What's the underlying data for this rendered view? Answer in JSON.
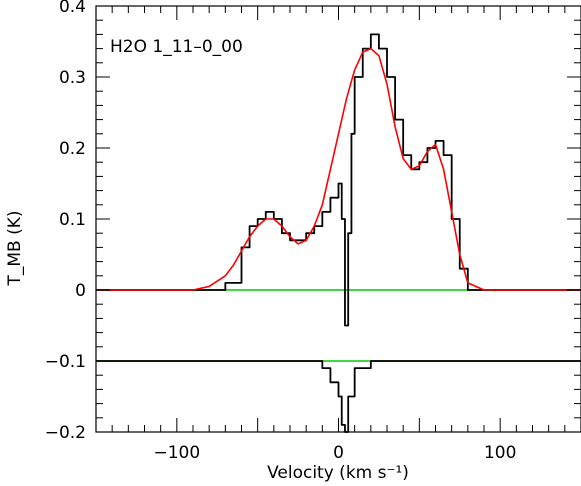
{
  "chart_data": {
    "type": "line",
    "xlabel": "Velocity (km s⁻¹)",
    "ylabel": "T_MB (K)",
    "annotation": "H2O 1_11–0_00",
    "xlim": [
      -150,
      150
    ],
    "ylim": [
      -0.2,
      0.4
    ],
    "xticks": [
      -100,
      0,
      100
    ],
    "xtick_labels": [
      "−100",
      "0",
      "100"
    ],
    "yticks": [
      -0.2,
      -0.1,
      0,
      0.1,
      0.2,
      0.3,
      0.4
    ],
    "ytick_labels": [
      "−0.2",
      "−0.1",
      "0",
      "0.1",
      "0.2",
      "0.3",
      "0.4"
    ],
    "grid": false,
    "legend": "none",
    "series": [
      {
        "style": "histogram",
        "color": "#000000",
        "x": [
          -150,
          -140,
          -130,
          -120,
          -110,
          -100,
          -90,
          -80,
          -70,
          -60,
          -55,
          -50,
          -45,
          -40,
          -35,
          -30,
          -25,
          -20,
          -15,
          -10,
          -5,
          0,
          2,
          4,
          6,
          8,
          10,
          15,
          20,
          25,
          30,
          35,
          40,
          45,
          50,
          55,
          60,
          65,
          70,
          75,
          80,
          90,
          100,
          110,
          120,
          130,
          140,
          150
        ],
        "y": [
          0.0,
          0.0,
          0.0,
          0.0,
          0.0,
          0.0,
          0.0,
          0.0,
          0.01,
          0.06,
          0.09,
          0.1,
          0.11,
          0.1,
          0.08,
          0.07,
          0.07,
          0.08,
          0.09,
          0.11,
          0.13,
          0.15,
          0.1,
          -0.05,
          0.08,
          0.22,
          0.3,
          0.34,
          0.36,
          0.34,
          0.3,
          0.24,
          0.19,
          0.17,
          0.18,
          0.2,
          0.21,
          0.19,
          0.1,
          0.03,
          0.0,
          0.0,
          0.0,
          0.0,
          0.0,
          0.0,
          0.0,
          0.0
        ]
      },
      {
        "style": "line",
        "color": "#ff0000",
        "x": [
          -150,
          -90,
          -80,
          -70,
          -65,
          -60,
          -55,
          -50,
          -45,
          -40,
          -35,
          -30,
          -25,
          -20,
          -15,
          -10,
          -5,
          0,
          5,
          10,
          15,
          20,
          25,
          30,
          35,
          40,
          45,
          50,
          55,
          60,
          65,
          70,
          75,
          80,
          90,
          150
        ],
        "y": [
          0.0,
          0.0,
          0.005,
          0.02,
          0.035,
          0.055,
          0.075,
          0.09,
          0.1,
          0.1,
          0.09,
          0.075,
          0.065,
          0.07,
          0.09,
          0.12,
          0.17,
          0.22,
          0.27,
          0.31,
          0.335,
          0.34,
          0.33,
          0.29,
          0.23,
          0.185,
          0.17,
          0.175,
          0.195,
          0.205,
          0.17,
          0.11,
          0.05,
          0.01,
          0.0,
          0.0
        ]
      },
      {
        "style": "histogram",
        "color": "#000000",
        "x": [
          -150,
          -140,
          -130,
          -120,
          -110,
          -100,
          -90,
          -80,
          -70,
          -60,
          -50,
          -40,
          -30,
          -20,
          -10,
          -5,
          0,
          2,
          4,
          6,
          10,
          20,
          30,
          40,
          50,
          60,
          70,
          80,
          90,
          100,
          110,
          120,
          130,
          140,
          150
        ],
        "y": [
          -0.1,
          -0.1,
          -0.1,
          -0.1,
          -0.1,
          -0.1,
          -0.1,
          -0.1,
          -0.1,
          -0.1,
          -0.1,
          -0.1,
          -0.1,
          -0.1,
          -0.11,
          -0.13,
          -0.15,
          -0.19,
          -0.2,
          -0.15,
          -0.11,
          -0.1,
          -0.1,
          -0.1,
          -0.1,
          -0.1,
          -0.1,
          -0.1,
          -0.1,
          -0.1,
          -0.1,
          -0.1,
          -0.1,
          -0.1,
          -0.1
        ]
      }
    ],
    "reference_lines": [
      {
        "y": 0,
        "color": "#00cc00"
      },
      {
        "y": -0.1,
        "color": "#00cc00"
      }
    ]
  }
}
